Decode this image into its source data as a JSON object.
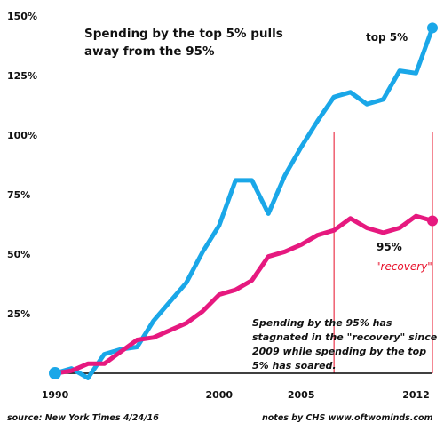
{
  "chart_data": {
    "type": "line",
    "title": "Spending by the top 5% pulls away from the 95%",
    "x": [
      1990,
      1991,
      1992,
      1993,
      1994,
      1995,
      1996,
      1997,
      1998,
      1999,
      2000,
      2001,
      2002,
      2003,
      2004,
      2005,
      2006,
      2007,
      2008,
      2009,
      2010,
      2011,
      2012,
      2013
    ],
    "x_ticks": [
      "1990",
      "2000",
      "2005",
      "2012"
    ],
    "x_tick_values": [
      1990,
      2000,
      2005,
      2012
    ],
    "y_ticks": [
      "25%",
      "50%",
      "75%",
      "100%",
      "125%",
      "150%"
    ],
    "y_tick_values": [
      25,
      50,
      75,
      100,
      125,
      150
    ],
    "ylim": [
      0,
      150
    ],
    "series": [
      {
        "name": "top 5%",
        "color": "#1aa7e8",
        "values": [
          0,
          2,
          -2,
          8,
          10,
          11,
          22,
          30,
          38,
          51,
          62,
          81,
          81,
          67,
          83,
          95,
          106,
          116,
          118,
          113,
          115,
          127,
          126,
          145
        ]
      },
      {
        "name": "95%",
        "color": "#e6197f",
        "values": [
          0,
          1,
          4,
          4,
          9,
          14,
          15,
          18,
          21,
          26,
          33,
          35,
          39,
          49,
          51,
          54,
          58,
          60,
          65,
          61,
          59,
          61,
          66,
          64
        ]
      }
    ],
    "vlines": [
      2007,
      2013
    ],
    "vline_color": "#e8102a",
    "annotation_recovery": "\"recovery\"",
    "note": "Spending by the 95% has stagnated in the \"recovery\" since 2009 while spending by the top 5% has soared.",
    "source": "source: New York Times 4/24/16",
    "credits": "notes by CHS  www.oftwominds.com"
  }
}
